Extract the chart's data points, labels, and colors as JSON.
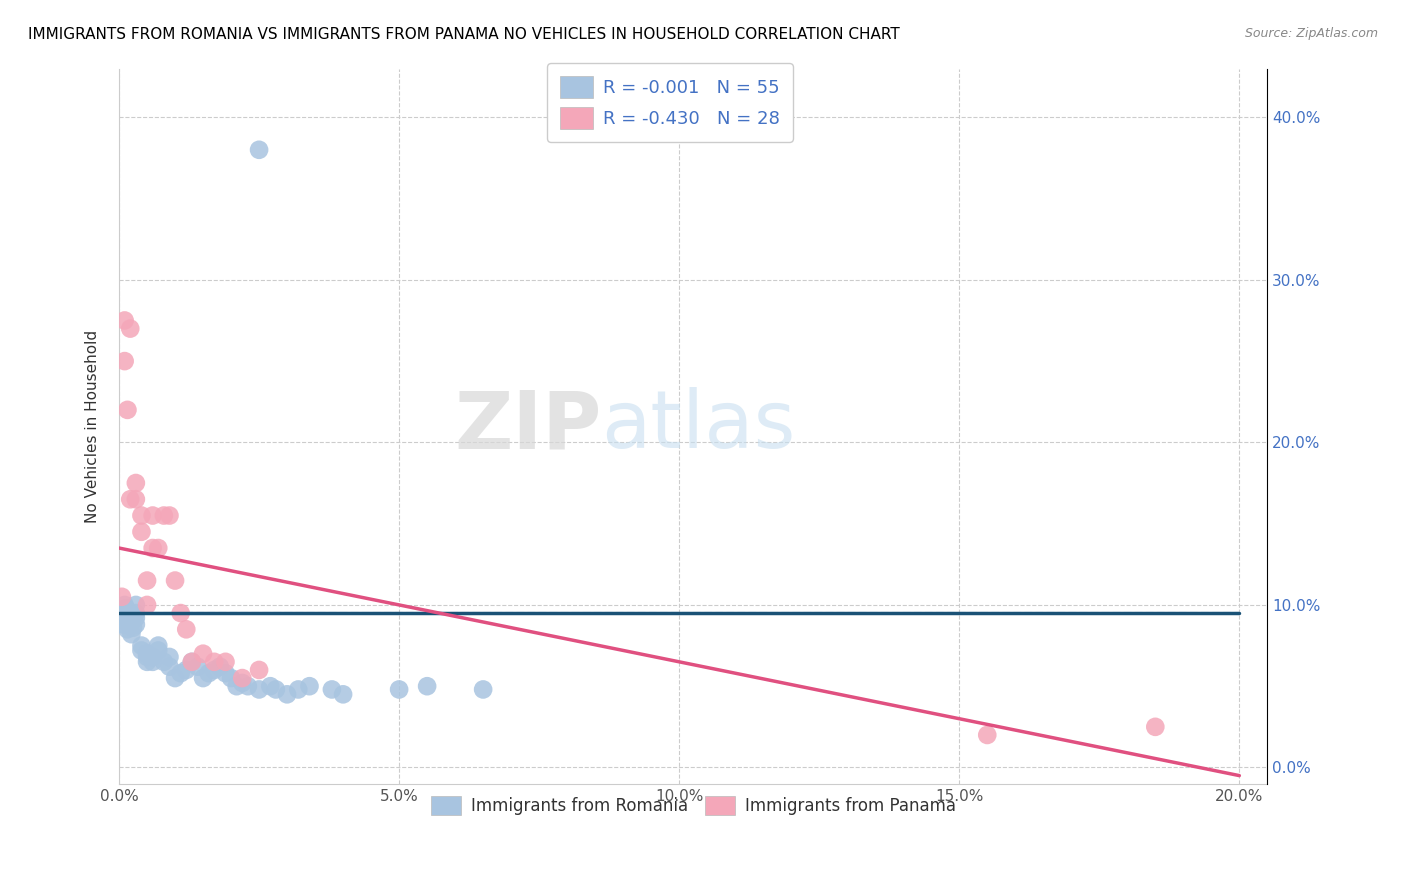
{
  "title": "IMMIGRANTS FROM ROMANIA VS IMMIGRANTS FROM PANAMA NO VEHICLES IN HOUSEHOLD CORRELATION CHART",
  "source": "Source: ZipAtlas.com",
  "ylabel": "No Vehicles in Household",
  "xlim": [
    0.0,
    0.205
  ],
  "ylim": [
    -0.01,
    0.43
  ],
  "xticks": [
    0.0,
    0.05,
    0.1,
    0.15,
    0.2
  ],
  "yticks": [
    0.0,
    0.1,
    0.2,
    0.3,
    0.4
  ],
  "ytick_labels_right": [
    "0.0%",
    "10.0%",
    "20.0%",
    "30.0%",
    "40.0%"
  ],
  "xtick_labels": [
    "0.0%",
    "5.0%",
    "10.0%",
    "15.0%",
    "20.0%"
  ],
  "legend_label1": "Immigrants from Romania",
  "legend_label2": "Immigrants from Panama",
  "R1": "-0.001",
  "N1": "55",
  "R2": "-0.430",
  "N2": "28",
  "color_romania": "#a8c4e0",
  "color_panama": "#f4a7b9",
  "color_romania_line": "#1a5276",
  "color_panama_line": "#e05080",
  "watermark_zip": "ZIP",
  "watermark_atlas": "atlas",
  "romania_line_x": [
    0.0,
    0.2
  ],
  "romania_line_y": [
    0.095,
    0.095
  ],
  "panama_line_x": [
    0.0,
    0.2
  ],
  "panama_line_y": [
    0.135,
    -0.005
  ],
  "romania_x": [
    0.0005,
    0.0007,
    0.001,
    0.001,
    0.001,
    0.0012,
    0.0015,
    0.0015,
    0.002,
    0.002,
    0.002,
    0.0022,
    0.0025,
    0.003,
    0.003,
    0.003,
    0.003,
    0.004,
    0.004,
    0.005,
    0.005,
    0.005,
    0.006,
    0.006,
    0.007,
    0.007,
    0.008,
    0.009,
    0.009,
    0.01,
    0.011,
    0.012,
    0.013,
    0.014,
    0.015,
    0.016,
    0.017,
    0.018,
    0.019,
    0.02,
    0.021,
    0.022,
    0.023,
    0.025,
    0.027,
    0.028,
    0.03,
    0.032,
    0.034,
    0.038,
    0.04,
    0.05,
    0.055,
    0.065,
    0.025
  ],
  "romania_y": [
    0.095,
    0.088,
    0.09,
    0.092,
    0.1,
    0.098,
    0.095,
    0.085,
    0.09,
    0.088,
    0.095,
    0.082,
    0.086,
    0.1,
    0.092,
    0.088,
    0.095,
    0.075,
    0.072,
    0.065,
    0.068,
    0.07,
    0.065,
    0.068,
    0.072,
    0.075,
    0.065,
    0.062,
    0.068,
    0.055,
    0.058,
    0.06,
    0.065,
    0.062,
    0.055,
    0.058,
    0.06,
    0.062,
    0.058,
    0.055,
    0.05,
    0.052,
    0.05,
    0.048,
    0.05,
    0.048,
    0.045,
    0.048,
    0.05,
    0.048,
    0.045,
    0.048,
    0.05,
    0.048,
    0.38
  ],
  "panama_x": [
    0.0005,
    0.001,
    0.001,
    0.0015,
    0.002,
    0.002,
    0.003,
    0.003,
    0.004,
    0.004,
    0.005,
    0.005,
    0.006,
    0.006,
    0.007,
    0.008,
    0.009,
    0.01,
    0.011,
    0.012,
    0.013,
    0.015,
    0.017,
    0.019,
    0.022,
    0.025,
    0.155,
    0.185
  ],
  "panama_y": [
    0.105,
    0.275,
    0.25,
    0.22,
    0.27,
    0.165,
    0.175,
    0.165,
    0.155,
    0.145,
    0.115,
    0.1,
    0.155,
    0.135,
    0.135,
    0.155,
    0.155,
    0.115,
    0.095,
    0.085,
    0.065,
    0.07,
    0.065,
    0.065,
    0.055,
    0.06,
    0.02,
    0.025
  ]
}
